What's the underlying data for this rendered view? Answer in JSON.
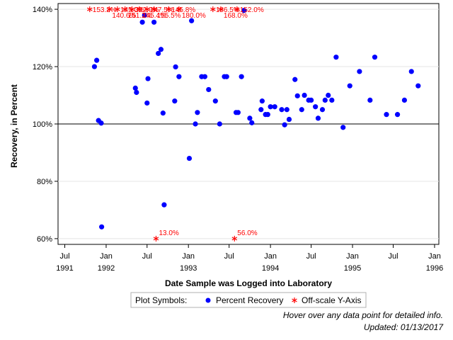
{
  "chart_data": {
    "type": "scatter",
    "xlabel": "Date Sample was Logged into Laboratory",
    "ylabel": "Recovery, in Percent",
    "ylim": [
      58,
      142
    ],
    "y_ticks": [
      60,
      80,
      100,
      120,
      140
    ],
    "y_tick_labels": [
      "60%",
      "80%",
      "100%",
      "120%",
      "140%"
    ],
    "xlim": [
      "1991-06-01",
      "1996-01-20"
    ],
    "x_ticks": [
      {
        "date": "1991-07-01",
        "line1": "Jul",
        "line2": "1991"
      },
      {
        "date": "1992-01-01",
        "line1": "Jan",
        "line2": "1992"
      },
      {
        "date": "1992-07-01",
        "line1": "Jul",
        "line2": ""
      },
      {
        "date": "1993-01-01",
        "line1": "Jan",
        "line2": "1993"
      },
      {
        "date": "1993-07-01",
        "line1": "Jul",
        "line2": ""
      },
      {
        "date": "1994-01-01",
        "line1": "Jan",
        "line2": "1994"
      },
      {
        "date": "1994-07-01",
        "line1": "Jul",
        "line2": ""
      },
      {
        "date": "1995-01-01",
        "line1": "Jan",
        "line2": "1995"
      },
      {
        "date": "1995-07-01",
        "line1": "Jul",
        "line2": ""
      },
      {
        "date": "1996-01-01",
        "line1": "Jan",
        "line2": "1996"
      }
    ],
    "reference_line": 100,
    "grid": "horizontal",
    "series": [
      {
        "name": "Percent Recovery",
        "color": "#0000ff",
        "marker": "circle",
        "points": [
          {
            "date": "1991-11-10",
            "y": 120.0
          },
          {
            "date": "1991-11-20",
            "y": 122.2
          },
          {
            "date": "1991-11-28",
            "y": 101.2
          },
          {
            "date": "1991-12-10",
            "y": 100.3
          },
          {
            "date": "1991-12-12",
            "y": 64.1
          },
          {
            "date": "1992-05-10",
            "y": 112.5
          },
          {
            "date": "1992-05-15",
            "y": 111.0
          },
          {
            "date": "1992-06-10",
            "y": 135.5
          },
          {
            "date": "1992-06-20",
            "y": 137.9
          },
          {
            "date": "1992-07-01",
            "y": 107.3
          },
          {
            "date": "1992-07-05",
            "y": 115.8
          },
          {
            "date": "1992-08-01",
            "y": 135.5
          },
          {
            "date": "1992-08-20",
            "y": 124.6
          },
          {
            "date": "1992-09-01",
            "y": 126.0
          },
          {
            "date": "1992-09-10",
            "y": 103.8
          },
          {
            "date": "1992-09-15",
            "y": 71.8
          },
          {
            "date": "1992-11-01",
            "y": 108.0
          },
          {
            "date": "1992-11-05",
            "y": 119.9
          },
          {
            "date": "1992-11-20",
            "y": 116.5
          },
          {
            "date": "1993-01-05",
            "y": 88.0
          },
          {
            "date": "1993-01-15",
            "y": 136.0
          },
          {
            "date": "1993-02-01",
            "y": 100.0
          },
          {
            "date": "1993-02-10",
            "y": 104.0
          },
          {
            "date": "1993-03-01",
            "y": 116.5
          },
          {
            "date": "1993-03-15",
            "y": 116.5
          },
          {
            "date": "1993-04-01",
            "y": 112.0
          },
          {
            "date": "1993-05-01",
            "y": 108.0
          },
          {
            "date": "1993-05-20",
            "y": 100.0
          },
          {
            "date": "1993-06-10",
            "y": 116.5
          },
          {
            "date": "1993-06-20",
            "y": 116.5
          },
          {
            "date": "1993-08-01",
            "y": 104.0
          },
          {
            "date": "1993-08-10",
            "y": 104.0
          },
          {
            "date": "1993-08-25",
            "y": 116.5
          },
          {
            "date": "1993-09-05",
            "y": 139.6
          },
          {
            "date": "1993-10-01",
            "y": 102.0
          },
          {
            "date": "1993-10-10",
            "y": 100.4
          },
          {
            "date": "1993-11-20",
            "y": 105.0
          },
          {
            "date": "1993-11-25",
            "y": 108.0
          },
          {
            "date": "1993-12-10",
            "y": 103.3
          },
          {
            "date": "1993-12-20",
            "y": 103.3
          },
          {
            "date": "1994-01-01",
            "y": 106.0
          },
          {
            "date": "1994-01-20",
            "y": 106.0
          },
          {
            "date": "1994-02-20",
            "y": 105.0
          },
          {
            "date": "1994-03-05",
            "y": 99.7
          },
          {
            "date": "1994-03-15",
            "y": 105.0
          },
          {
            "date": "1994-03-25",
            "y": 101.6
          },
          {
            "date": "1994-04-20",
            "y": 115.5
          },
          {
            "date": "1994-05-01",
            "y": 109.8
          },
          {
            "date": "1994-05-20",
            "y": 105.0
          },
          {
            "date": "1994-06-01",
            "y": 110.0
          },
          {
            "date": "1994-06-20",
            "y": 108.3
          },
          {
            "date": "1994-07-01",
            "y": 108.3
          },
          {
            "date": "1994-07-20",
            "y": 106.0
          },
          {
            "date": "1994-08-01",
            "y": 102.0
          },
          {
            "date": "1994-08-20",
            "y": 105.0
          },
          {
            "date": "1994-09-01",
            "y": 108.3
          },
          {
            "date": "1994-09-15",
            "y": 110.0
          },
          {
            "date": "1994-10-01",
            "y": 108.3
          },
          {
            "date": "1994-10-20",
            "y": 123.3
          },
          {
            "date": "1994-11-20",
            "y": 98.8
          },
          {
            "date": "1994-12-20",
            "y": 113.3
          },
          {
            "date": "1995-02-01",
            "y": 118.3
          },
          {
            "date": "1995-03-20",
            "y": 108.3
          },
          {
            "date": "1995-04-10",
            "y": 123.3
          },
          {
            "date": "1995-06-01",
            "y": 103.3
          },
          {
            "date": "1995-07-20",
            "y": 103.3
          },
          {
            "date": "1995-08-20",
            "y": 108.3
          },
          {
            "date": "1995-09-20",
            "y": 118.3
          },
          {
            "date": "1995-10-20",
            "y": 113.3
          }
        ]
      },
      {
        "name": "Off-scale Y-Axis",
        "color": "#ff0000",
        "marker": "asterisk",
        "points": [
          {
            "date": "1991-10-20",
            "y": 140,
            "label": "153.2%"
          },
          {
            "date": "1992-01-15",
            "y": 140,
            "label": "140.6%"
          },
          {
            "date": "1992-02-20",
            "y": 140,
            "label": "145.0%"
          },
          {
            "date": "1992-03-25",
            "y": 140,
            "label": "151.2%"
          },
          {
            "date": "1992-04-25",
            "y": 140,
            "label": "322.9%"
          },
          {
            "date": "1992-05-28",
            "y": 140,
            "label": "145.4%"
          },
          {
            "date": "1992-07-01",
            "y": 140,
            "label": "147.5%"
          },
          {
            "date": "1992-08-01",
            "y": 140,
            "label": "155.5%"
          },
          {
            "date": "1992-10-05",
            "y": 140,
            "label": "145.8%"
          },
          {
            "date": "1992-11-20",
            "y": 140,
            "label": "180.0%"
          },
          {
            "date": "1993-04-20",
            "y": 140,
            "label": "186.5%"
          },
          {
            "date": "1993-05-25",
            "y": 140,
            "label": "168.0%"
          },
          {
            "date": "1993-08-05",
            "y": 140,
            "label": "152.0%"
          },
          {
            "date": "1992-08-10",
            "y": 60,
            "label": "13.0%"
          },
          {
            "date": "1993-07-25",
            "y": 60,
            "label": "56.0%"
          }
        ]
      }
    ],
    "legend": {
      "position": "bottom",
      "title": "Plot Symbols:",
      "items": [
        "Percent Recovery",
        "Off-scale Y-Axis"
      ]
    }
  },
  "footnotes": {
    "hover": "Hover over any data point for detailed info.",
    "updated": "Updated: 01/13/2017"
  }
}
